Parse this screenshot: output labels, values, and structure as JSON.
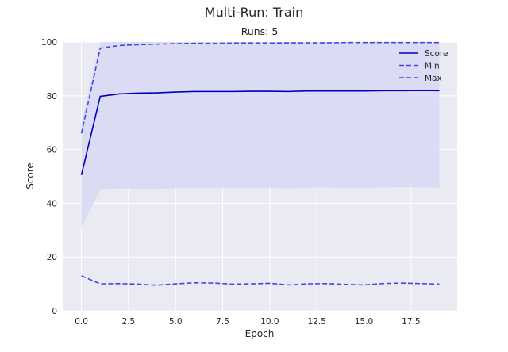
{
  "figure": {
    "title": "Multi-Run: Train",
    "subtitle": "Runs: 5"
  },
  "chart_data": {
    "type": "line",
    "xlabel": "Epoch",
    "ylabel": "Score",
    "xlim": [
      -0.95,
      19.95
    ],
    "ylim": [
      0,
      100
    ],
    "xticks": [
      "0.0",
      "2.5",
      "5.0",
      "7.5",
      "10.0",
      "12.5",
      "15.0",
      "17.5"
    ],
    "xtick_values": [
      0,
      2.5,
      5,
      7.5,
      10,
      12.5,
      15,
      17.5
    ],
    "yticks": [
      "0",
      "20",
      "40",
      "60",
      "80",
      "100"
    ],
    "ytick_values": [
      0,
      20,
      40,
      60,
      80,
      100
    ],
    "grid": true,
    "legend_position": "top-right",
    "x": [
      0,
      1,
      2,
      3,
      4,
      5,
      6,
      7,
      8,
      9,
      10,
      11,
      12,
      13,
      14,
      15,
      16,
      17,
      18,
      19
    ],
    "series": [
      {
        "name": "Score",
        "style": "solid",
        "color": "#0000bb",
        "values": [
          50.5,
          79.8,
          80.7,
          81.0,
          81.1,
          81.4,
          81.6,
          81.6,
          81.6,
          81.7,
          81.7,
          81.6,
          81.8,
          81.8,
          81.8,
          81.8,
          81.9,
          81.9,
          82.0,
          81.9
        ]
      },
      {
        "name": "Min",
        "style": "dashed",
        "color": "#4444ee",
        "values": [
          13.0,
          10.0,
          10.1,
          9.9,
          9.5,
          10.0,
          10.4,
          10.3,
          9.9,
          10.0,
          10.2,
          9.6,
          10.0,
          10.1,
          9.8,
          9.6,
          10.1,
          10.3,
          10.1,
          9.9
        ]
      },
      {
        "name": "Max",
        "style": "dashed",
        "color": "#4444ee",
        "values": [
          66.0,
          97.7,
          98.7,
          99.0,
          99.2,
          99.4,
          99.5,
          99.5,
          99.6,
          99.6,
          99.6,
          99.7,
          99.7,
          99.7,
          99.8,
          99.8,
          99.8,
          99.8,
          99.8,
          99.8
        ]
      }
    ],
    "band": {
      "color": "#d8d8f5",
      "lower": [
        31.0,
        45.0,
        45.5,
        45.4,
        45.3,
        45.6,
        45.8,
        45.8,
        45.7,
        45.7,
        45.8,
        45.5,
        45.8,
        45.9,
        45.7,
        45.7,
        45.9,
        46.0,
        45.9,
        45.8
      ],
      "upper": [
        70.0,
        100,
        100,
        100,
        100,
        100,
        100,
        100,
        100,
        100,
        100,
        100,
        100,
        100,
        100,
        100,
        100,
        100,
        100,
        100
      ]
    },
    "colors": {
      "plot_background": "#eaeaf2",
      "grid": "#ffffff"
    }
  }
}
